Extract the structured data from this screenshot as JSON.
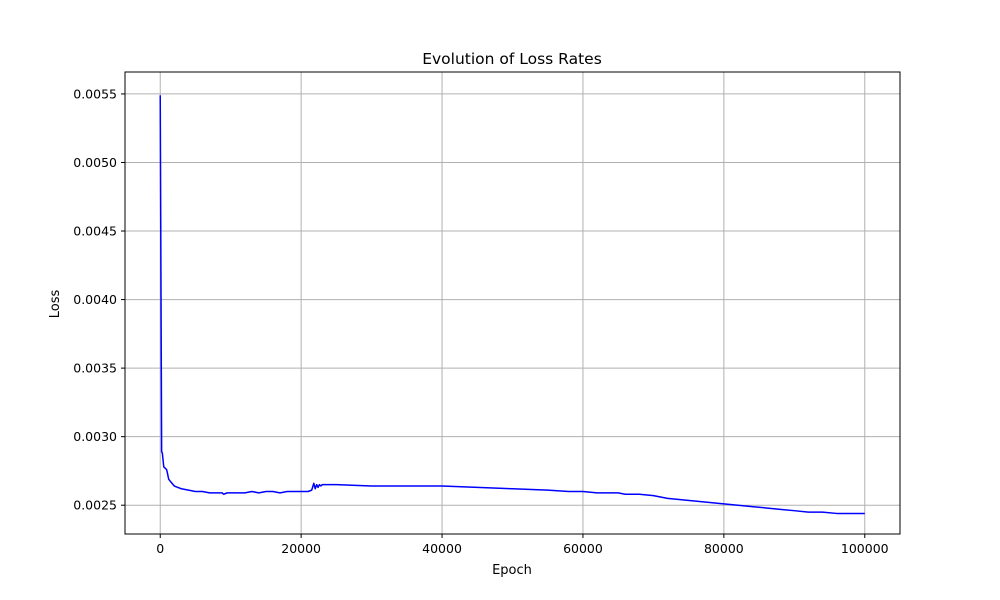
{
  "chart_data": {
    "type": "line",
    "title": "Evolution of Loss Rates",
    "xlabel": "Epoch",
    "ylabel": "Loss",
    "xlim": [
      -5000,
      105000
    ],
    "ylim": [
      0.00229,
      0.00566
    ],
    "xticks": [
      0,
      20000,
      40000,
      60000,
      80000,
      100000
    ],
    "xtick_labels": [
      "0",
      "20000",
      "40000",
      "60000",
      "80000",
      "100000"
    ],
    "yticks": [
      0.0025,
      0.003,
      0.0035,
      0.004,
      0.0045,
      0.005,
      0.0055
    ],
    "ytick_labels": [
      "0.0025",
      "0.0030",
      "0.0035",
      "0.0040",
      "0.0045",
      "0.0050",
      "0.0055"
    ],
    "grid": true,
    "series": [
      {
        "color": "#0000ff",
        "x": [
          0,
          100,
          200,
          300,
          500,
          700,
          900,
          1000,
          1200,
          1500,
          2000,
          2500,
          3000,
          4000,
          5000,
          6000,
          7000,
          8000,
          8800,
          9000,
          9500,
          10000,
          11000,
          12000,
          13000,
          14000,
          15000,
          16000,
          17000,
          18000,
          19000,
          20000,
          21000,
          21500,
          21800,
          22000,
          22200,
          22400,
          22600,
          22800,
          23000,
          23500,
          25000,
          30000,
          35000,
          40000,
          45000,
          50000,
          55000,
          58000,
          60000,
          62000,
          64000,
          65000,
          66000,
          68000,
          70000,
          72000,
          74000,
          76000,
          78000,
          80000,
          82000,
          84000,
          86000,
          88000,
          90000,
          92000,
          94000,
          96000,
          98000,
          100000
        ],
        "y": [
          0.00549,
          0.0042,
          0.00289,
          0.00288,
          0.00278,
          0.00277,
          0.00276,
          0.00274,
          0.00269,
          0.00267,
          0.00264,
          0.00263,
          0.00262,
          0.00261,
          0.0026,
          0.0026,
          0.00259,
          0.00259,
          0.00259,
          0.00258,
          0.00259,
          0.00259,
          0.00259,
          0.00259,
          0.0026,
          0.00259,
          0.0026,
          0.0026,
          0.00259,
          0.0026,
          0.0026,
          0.0026,
          0.0026,
          0.00261,
          0.00266,
          0.00262,
          0.00265,
          0.00263,
          0.00265,
          0.00264,
          0.00265,
          0.00265,
          0.00265,
          0.00264,
          0.00264,
          0.00264,
          0.00263,
          0.00262,
          0.00261,
          0.0026,
          0.0026,
          0.00259,
          0.00259,
          0.00259,
          0.00258,
          0.00258,
          0.00257,
          0.00255,
          0.00254,
          0.00253,
          0.00252,
          0.00251,
          0.0025,
          0.00249,
          0.00248,
          0.00247,
          0.00246,
          0.00245,
          0.00245,
          0.00244,
          0.00244,
          0.00244
        ]
      }
    ]
  }
}
